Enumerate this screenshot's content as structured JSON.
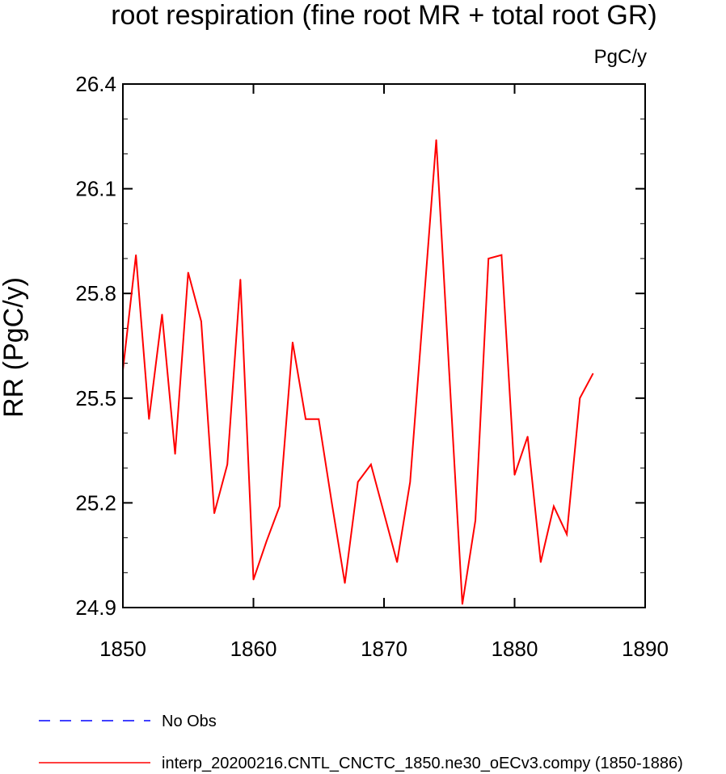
{
  "chart_data": {
    "type": "line",
    "title": "root respiration (fine root MR + total root GR)",
    "units": "PgC/y",
    "ylabel": "RR  (PgC/y)",
    "xlabel": "",
    "xlim": [
      1850,
      1890
    ],
    "ylim": [
      24.9,
      26.4
    ],
    "xticks": [
      1850,
      1860,
      1870,
      1880,
      1890
    ],
    "xtick_labels": [
      "1850",
      "1860",
      "1870",
      "1880",
      "1890"
    ],
    "yticks": [
      24.9,
      25.2,
      25.5,
      25.8,
      26.1,
      26.4
    ],
    "ytick_labels": [
      "24.9",
      "25.2",
      "25.5",
      "25.8",
      "26.1",
      "26.4"
    ],
    "grid": false,
    "legend_position": "bottom-left",
    "legend": [
      {
        "label": "No Obs",
        "color": "#0000ff",
        "style": "dashed"
      },
      {
        "label": "interp_20200216.CNTL_CNCTC_1850.ne30_oECv3.compy (1850-1886)",
        "color": "#ff0000",
        "style": "solid"
      }
    ],
    "series": [
      {
        "name": "interp_20200216.CNTL_CNCTC_1850.ne30_oECv3.compy (1850-1886)",
        "color": "#ff0000",
        "x": [
          1850,
          1851,
          1852,
          1853,
          1854,
          1855,
          1856,
          1857,
          1858,
          1859,
          1860,
          1861,
          1862,
          1863,
          1864,
          1865,
          1866,
          1867,
          1868,
          1869,
          1870,
          1871,
          1872,
          1873,
          1874,
          1875,
          1876,
          1877,
          1878,
          1879,
          1880,
          1881,
          1882,
          1883,
          1884,
          1885,
          1886
        ],
        "y": [
          25.58,
          25.91,
          25.44,
          25.74,
          25.34,
          25.86,
          25.72,
          25.17,
          25.31,
          25.84,
          24.98,
          25.09,
          25.19,
          25.66,
          25.44,
          25.44,
          25.2,
          24.97,
          25.26,
          25.31,
          25.17,
          25.03,
          25.26,
          25.75,
          26.24,
          25.57,
          24.91,
          25.15,
          25.9,
          25.91,
          25.28,
          25.39,
          25.03,
          25.19,
          25.11,
          25.5,
          25.57
        ]
      }
    ]
  }
}
